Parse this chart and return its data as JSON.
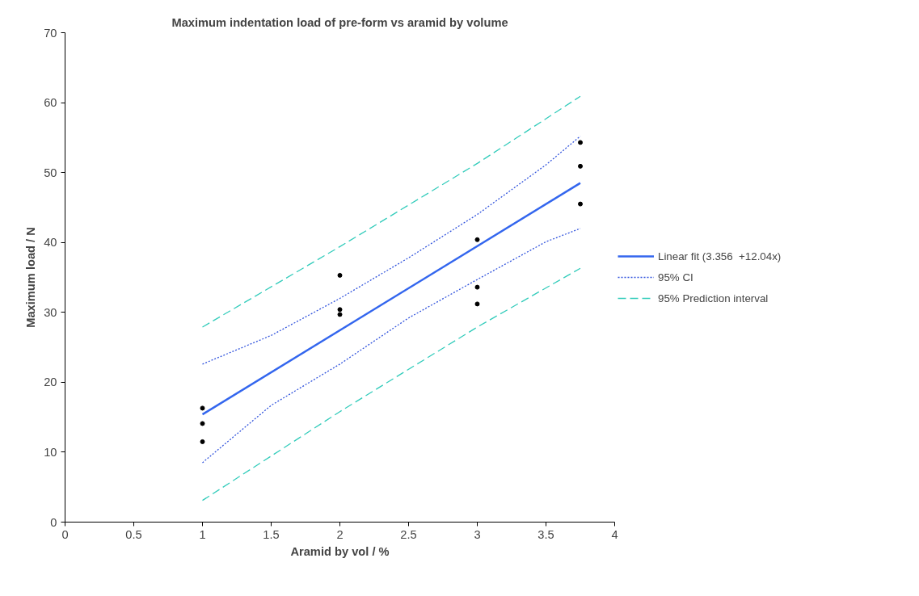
{
  "chart_data": {
    "type": "scatter",
    "title": "Maximum indentation load of pre-form vs aramid by volume",
    "xlabel": "Aramid by vol / %",
    "ylabel": "Maximum load / N",
    "xlim": [
      0,
      4
    ],
    "xticks": [
      0,
      0.5,
      1,
      1.5,
      2,
      2.5,
      3,
      3.5,
      4
    ],
    "ylim": [
      0,
      70
    ],
    "yticks": [
      0,
      10,
      20,
      30,
      40,
      50,
      60,
      70
    ],
    "grid": false,
    "legend": "right",
    "series": [
      {
        "color": "#000000",
        "marker": "circle",
        "x": [
          1,
          1,
          1,
          2,
          2,
          2,
          3,
          3,
          3,
          3.75,
          3.75,
          3.75
        ],
        "values": [
          16.3,
          14.1,
          11.5,
          35.3,
          30.4,
          29.7,
          40.4,
          33.6,
          31.2,
          54.3,
          50.9,
          45.5
        ]
      },
      {
        "type": "line",
        "name": "Linear fit (3.356  +12.04x)",
        "color": "#3366ee",
        "line_style": "solid",
        "x": [
          1,
          3.75
        ],
        "values": [
          15.4,
          48.5
        ]
      },
      {
        "type": "line",
        "name": "95% CI",
        "color": "#3355dd",
        "line_style": "dotted",
        "x": [
          1,
          1.5,
          2,
          2.5,
          3,
          3.5,
          3.75
        ],
        "values": [
          22.6,
          26.7,
          32.0,
          37.8,
          44.0,
          51.1,
          55.2
        ]
      },
      {
        "type": "line",
        "color": "#3355dd",
        "line_style": "dotted",
        "x": [
          1,
          1.5,
          2,
          2.5,
          3,
          3.5,
          3.75
        ],
        "values": [
          8.5,
          16.7,
          22.6,
          29.2,
          34.7,
          40.1,
          42.0
        ]
      },
      {
        "type": "line",
        "name": "95% Prediction interval",
        "color": "#33ccbb",
        "line_style": "dashed",
        "x": [
          1,
          2,
          3,
          3.75
        ],
        "values": [
          27.9,
          39.4,
          51.3,
          60.9
        ]
      },
      {
        "type": "line",
        "color": "#33ccbb",
        "line_style": "dashed",
        "x": [
          1,
          2,
          3,
          3.75
        ],
        "values": [
          3.1,
          15.8,
          27.9,
          36.3
        ]
      }
    ]
  }
}
